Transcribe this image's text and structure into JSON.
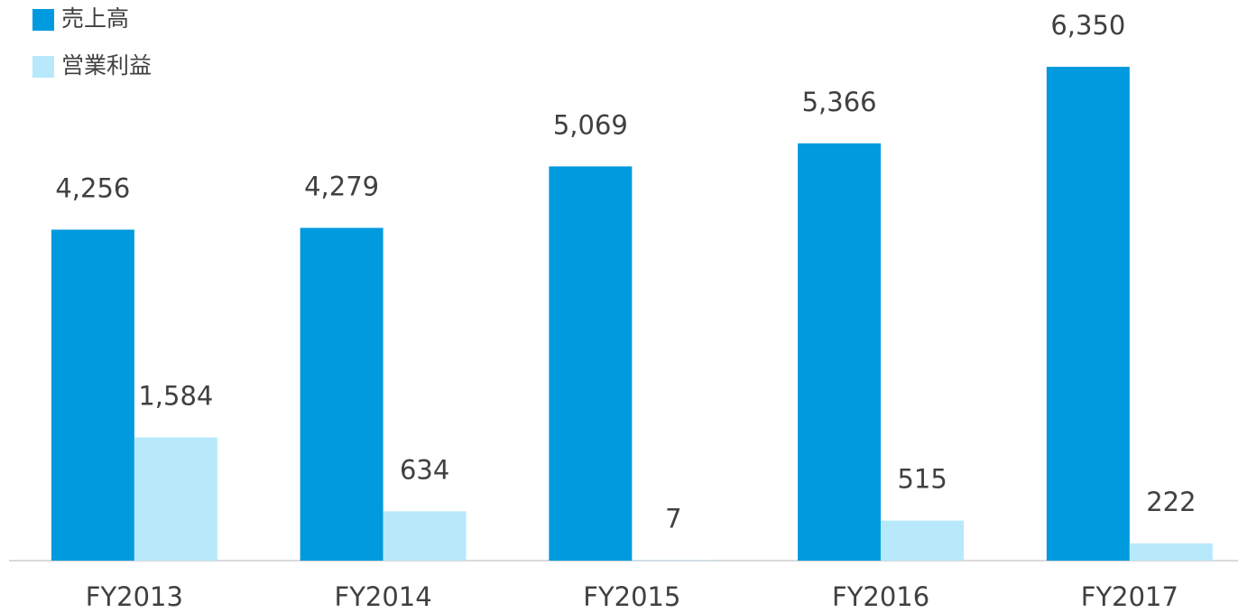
{
  "chart_data": {
    "type": "bar",
    "categories": [
      "FY2013",
      "FY2014",
      "FY2015",
      "FY2016",
      "FY2017"
    ],
    "series": [
      {
        "name": "売上高",
        "color": "#009ade",
        "values": [
          4256,
          4279,
          5069,
          5366,
          6350
        ],
        "value_labels": [
          "4,256",
          "4,279",
          "5,069",
          "5,366",
          "6,350"
        ]
      },
      {
        "name": "営業利益",
        "color": "#b7e9fb",
        "values": [
          1584,
          634,
          7,
          515,
          222
        ],
        "value_labels": [
          "1,584",
          "634",
          "7",
          "515",
          "222"
        ]
      }
    ],
    "legend": "upper left"
  }
}
